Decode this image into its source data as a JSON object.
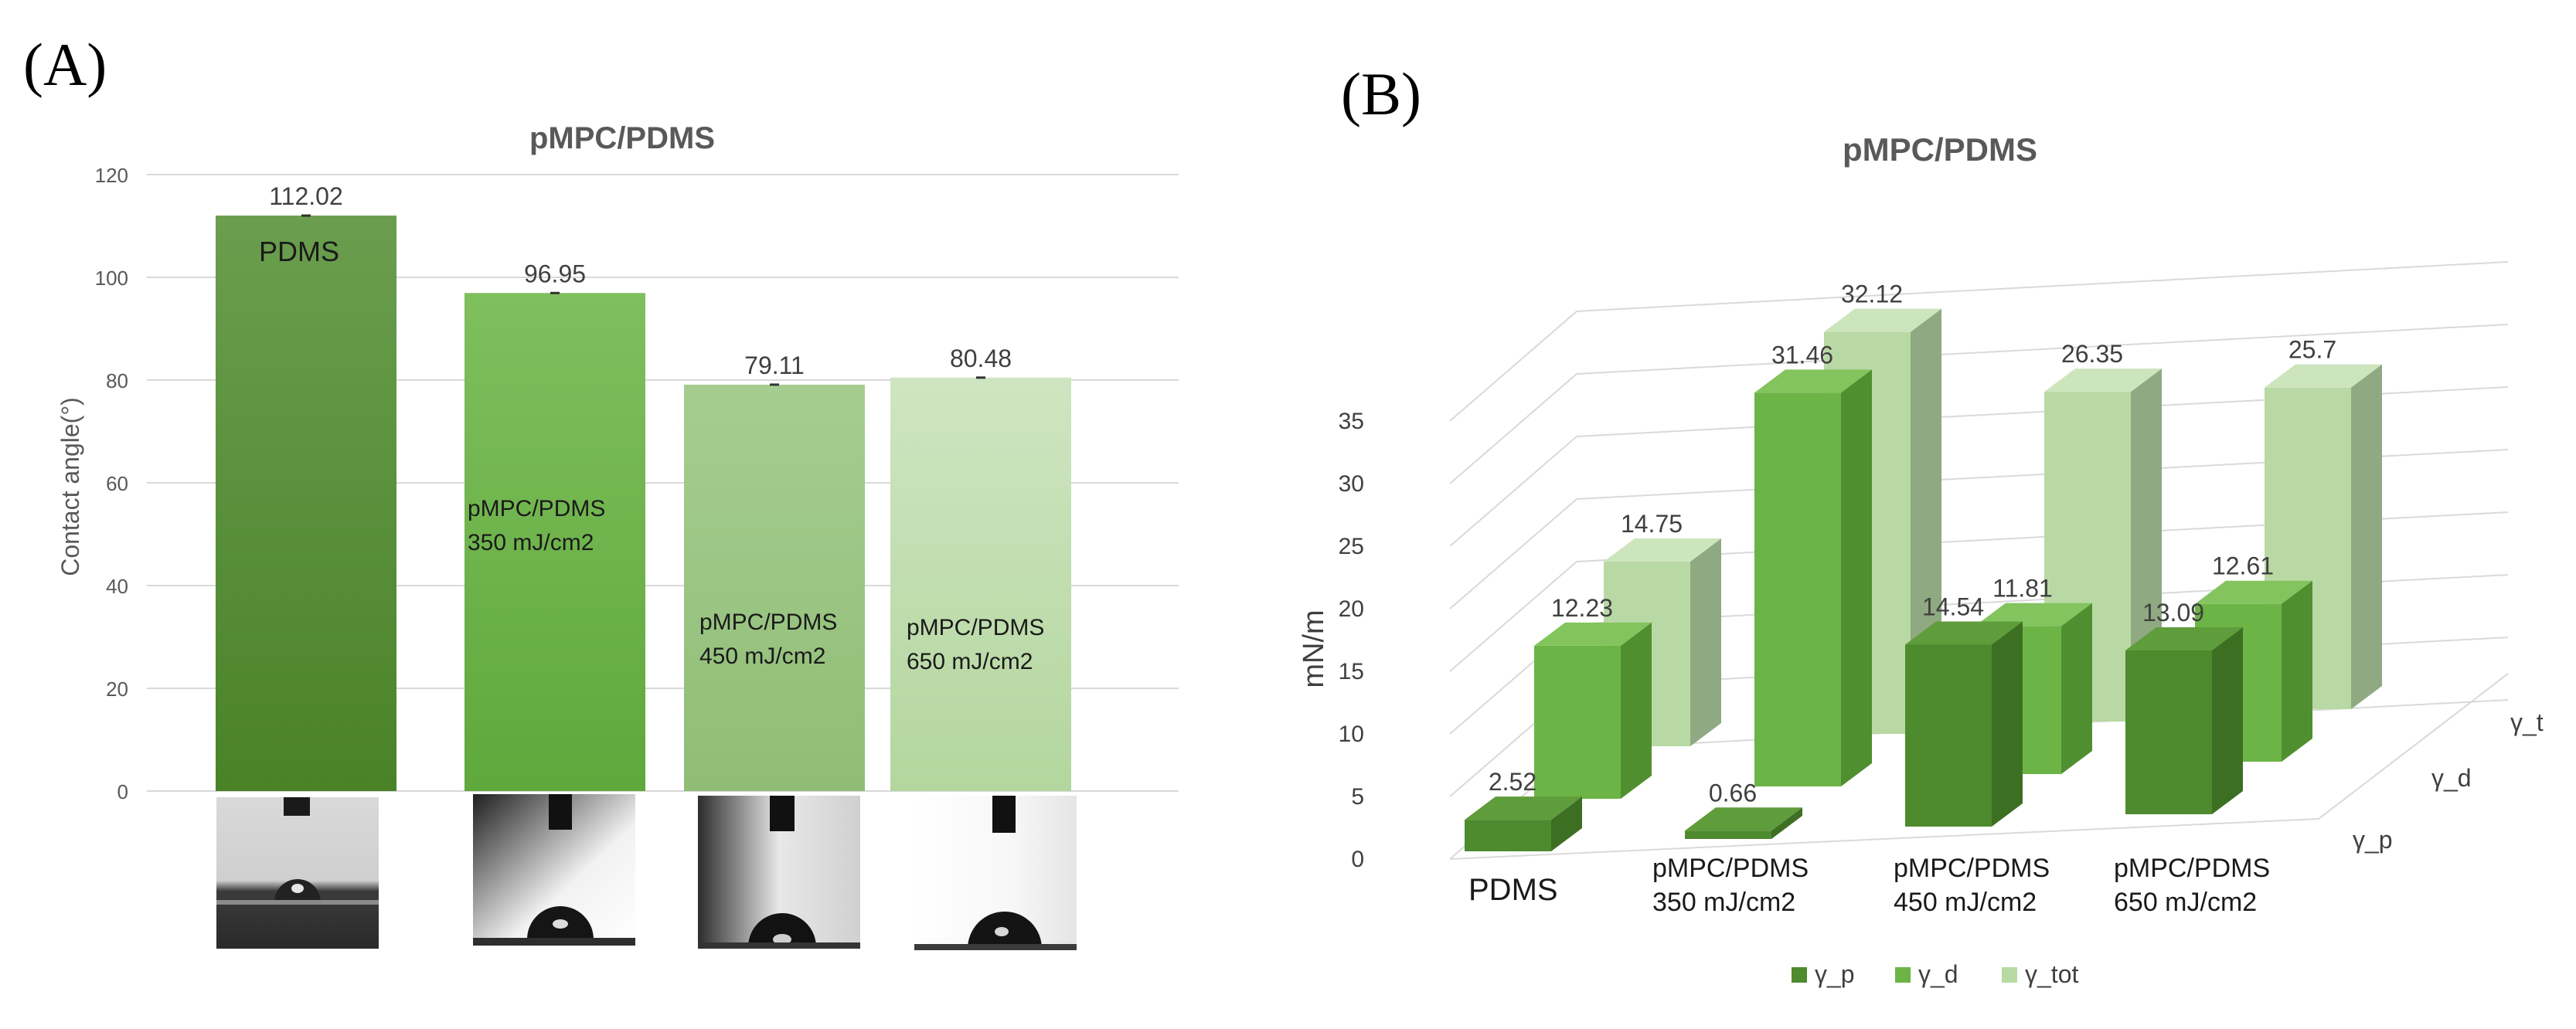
{
  "panel_a": {
    "letter": "(A)"
  },
  "panel_b": {
    "letter": "(B)"
  },
  "colors": {
    "dark_green": "#4e8a2e",
    "mid_green": "#6db446",
    "light_green": "#a4cc8b",
    "pale_green": "#c6e0b4",
    "grid": "#d9d9d9",
    "axis_text": "#595959",
    "title_text": "#595959"
  },
  "chart_data": [
    {
      "type": "bar",
      "title": "pMPC/PDMS",
      "ylabel": "Contact angle(°)",
      "xlabel": "",
      "ylim": [
        0,
        120
      ],
      "yticks": [
        0,
        20,
        40,
        60,
        80,
        100,
        120
      ],
      "categories": [
        "PDMS",
        "pMPC/PDMS 350 mJ/cm2",
        "pMPC/PDMS 450 mJ/cm2",
        "pMPC/PDMS 650 mJ/cm2"
      ],
      "bar_labels": [
        [
          "PDMS"
        ],
        [
          "pMPC/PDMS",
          "350 mJ/cm2"
        ],
        [
          "pMPC/PDMS",
          "450 mJ/cm2"
        ],
        [
          "pMPC/PDMS",
          "650 mJ/cm2"
        ]
      ],
      "values": [
        112.02,
        96.95,
        79.11,
        80.48
      ],
      "data_labels": [
        "112.02",
        "96.95",
        "79.11",
        "80.48"
      ],
      "grid": true,
      "legend": "none"
    },
    {
      "type": "bar",
      "subtype": "3d-column",
      "title": "pMPC/PDMS",
      "ylabel": "mN/m",
      "xlabel": "",
      "ylim": [
        0,
        35
      ],
      "yticks": [
        0,
        5,
        10,
        15,
        20,
        25,
        30,
        35
      ],
      "categories": [
        [
          "PDMS"
        ],
        [
          "pMPC/PDMS",
          "350 mJ/cm2"
        ],
        [
          "pMPC/PDMS",
          "450 mJ/cm2"
        ],
        [
          "pMPC/PDMS",
          "650 mJ/cm2"
        ]
      ],
      "depth_labels": [
        "γ_p",
        "γ_d",
        "γ_t"
      ],
      "series": [
        {
          "name": "γ_p",
          "values": [
            2.52,
            0.66,
            14.54,
            13.09
          ],
          "labels": [
            "2.52",
            "0.66",
            "14.54",
            "13.09"
          ]
        },
        {
          "name": "γ_d",
          "values": [
            12.23,
            31.46,
            11.81,
            12.61
          ],
          "labels": [
            "12.23",
            "31.46",
            "11.81",
            "12.61"
          ]
        },
        {
          "name": "γ_tot",
          "values": [
            14.75,
            32.12,
            26.35,
            25.7
          ],
          "labels": [
            "14.75",
            "32.12",
            "26.35",
            "25.7"
          ]
        }
      ],
      "legend": "bottom",
      "grid": true
    }
  ]
}
